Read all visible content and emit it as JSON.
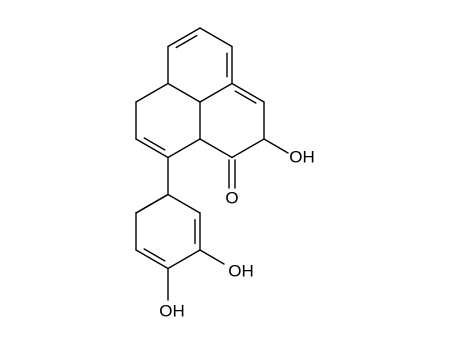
{
  "atom_labels": [
    "OH",
    "O",
    "OH",
    "OH"
  ]
}
